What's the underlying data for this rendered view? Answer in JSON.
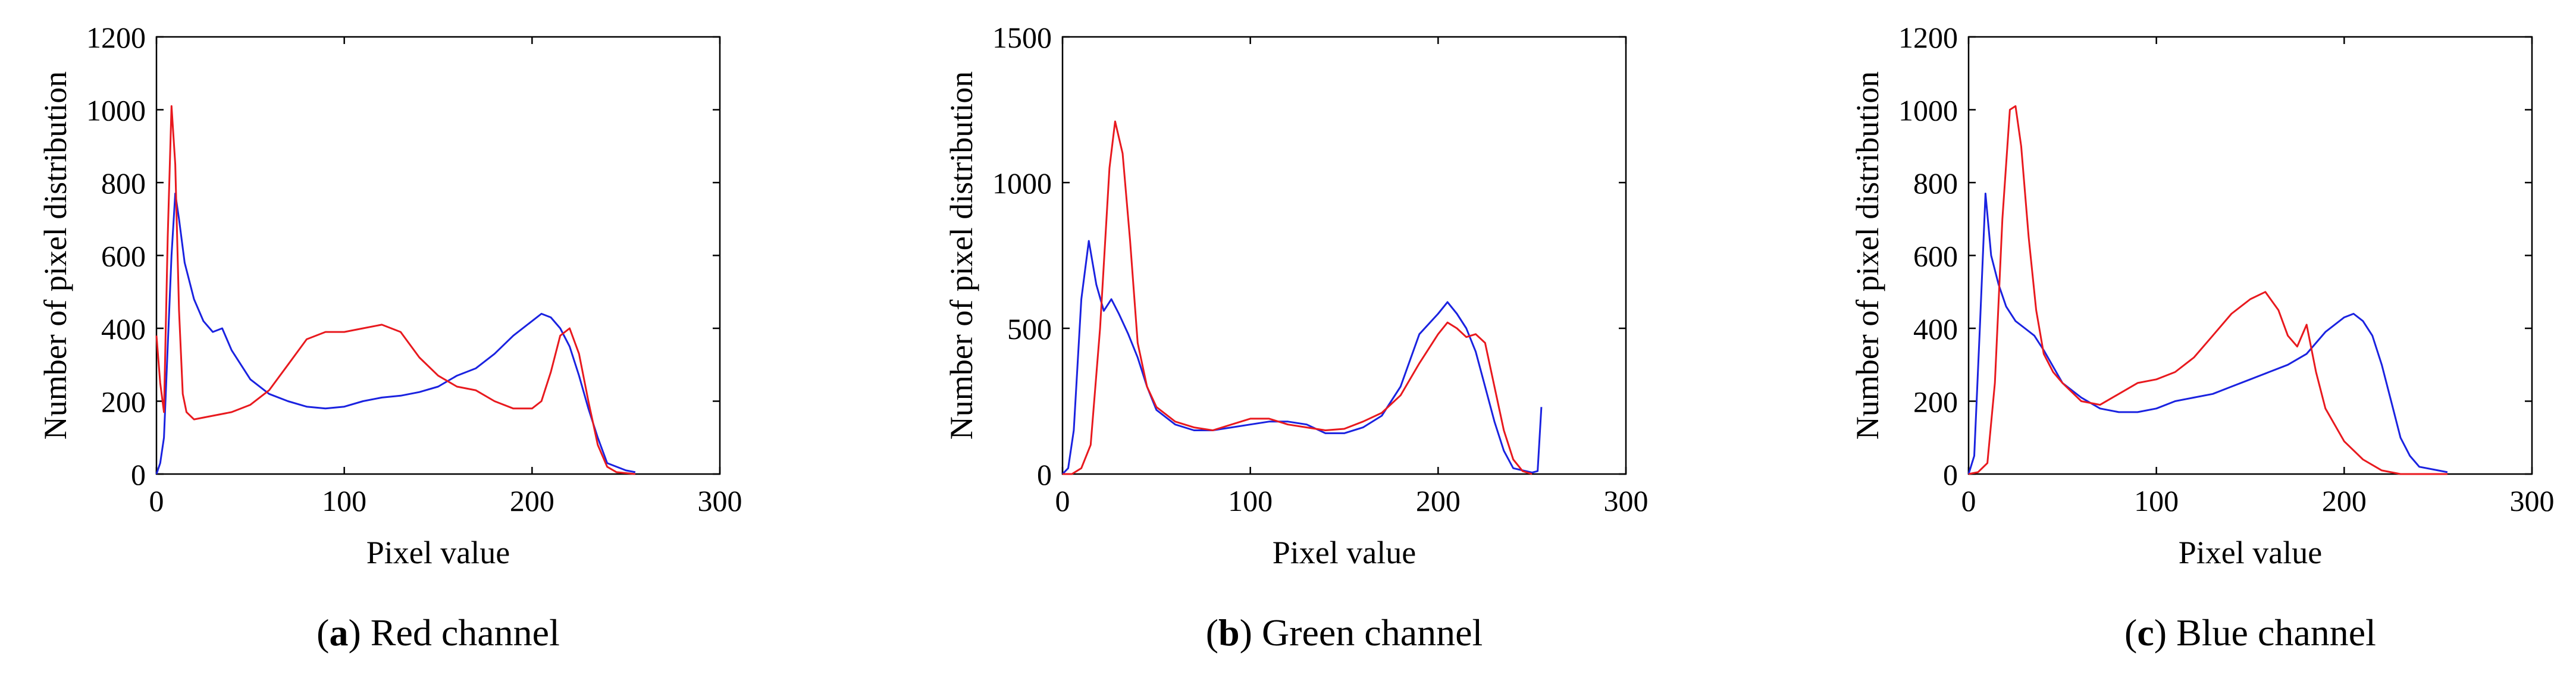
{
  "figure": {
    "colors": {
      "red_series": "#e8191e",
      "blue_series": "#1a22e0",
      "axis": "#000000"
    },
    "chart_data": [
      {
        "type": "line",
        "letter": "a",
        "caption": "Red channel",
        "xlabel": "Pixel value",
        "ylabel": "Number of pixel distribution",
        "xlim": [
          0,
          300
        ],
        "ylim": [
          0,
          1200
        ],
        "xticks": [
          0,
          100,
          200,
          300
        ],
        "yticks": [
          0,
          200,
          400,
          600,
          800,
          1000,
          1200
        ],
        "legend": "none",
        "series": [
          {
            "name": "red",
            "color": "#e8191e",
            "points": [
              [
                0,
                380
              ],
              [
                2,
                250
              ],
              [
                4,
                170
              ],
              [
                6,
                650
              ],
              [
                8,
                1010
              ],
              [
                10,
                850
              ],
              [
                12,
                450
              ],
              [
                14,
                220
              ],
              [
                16,
                170
              ],
              [
                20,
                150
              ],
              [
                30,
                160
              ],
              [
                40,
                170
              ],
              [
                50,
                190
              ],
              [
                60,
                230
              ],
              [
                70,
                300
              ],
              [
                80,
                370
              ],
              [
                90,
                390
              ],
              [
                100,
                390
              ],
              [
                110,
                400
              ],
              [
                120,
                410
              ],
              [
                130,
                390
              ],
              [
                140,
                320
              ],
              [
                150,
                270
              ],
              [
                160,
                240
              ],
              [
                170,
                230
              ],
              [
                180,
                200
              ],
              [
                190,
                180
              ],
              [
                200,
                180
              ],
              [
                205,
                200
              ],
              [
                210,
                280
              ],
              [
                215,
                380
              ],
              [
                220,
                400
              ],
              [
                225,
                330
              ],
              [
                230,
                200
              ],
              [
                235,
                80
              ],
              [
                240,
                20
              ],
              [
                245,
                5
              ],
              [
                255,
                0
              ]
            ]
          },
          {
            "name": "blue",
            "color": "#1a22e0",
            "points": [
              [
                0,
                0
              ],
              [
                2,
                30
              ],
              [
                4,
                100
              ],
              [
                6,
                350
              ],
              [
                8,
                600
              ],
              [
                10,
                770
              ],
              [
                12,
                700
              ],
              [
                15,
                580
              ],
              [
                20,
                480
              ],
              [
                25,
                420
              ],
              [
                30,
                390
              ],
              [
                35,
                400
              ],
              [
                40,
                340
              ],
              [
                50,
                260
              ],
              [
                60,
                220
              ],
              [
                70,
                200
              ],
              [
                80,
                185
              ],
              [
                90,
                180
              ],
              [
                100,
                185
              ],
              [
                110,
                200
              ],
              [
                120,
                210
              ],
              [
                130,
                215
              ],
              [
                140,
                225
              ],
              [
                150,
                240
              ],
              [
                160,
                270
              ],
              [
                170,
                290
              ],
              [
                180,
                330
              ],
              [
                190,
                380
              ],
              [
                200,
                420
              ],
              [
                205,
                440
              ],
              [
                210,
                430
              ],
              [
                215,
                400
              ],
              [
                220,
                350
              ],
              [
                225,
                270
              ],
              [
                230,
                180
              ],
              [
                235,
                100
              ],
              [
                240,
                30
              ],
              [
                250,
                10
              ],
              [
                255,
                5
              ]
            ]
          }
        ]
      },
      {
        "type": "line",
        "letter": "b",
        "caption": "Green channel",
        "xlabel": "Pixel value",
        "ylabel": "Number of pixel distribution",
        "xlim": [
          0,
          300
        ],
        "ylim": [
          0,
          1500
        ],
        "xticks": [
          0,
          100,
          200,
          300
        ],
        "yticks": [
          0,
          500,
          1000,
          1500
        ],
        "legend": "none",
        "series": [
          {
            "name": "red",
            "color": "#e8191e",
            "points": [
              [
                0,
                0
              ],
              [
                5,
                0
              ],
              [
                10,
                20
              ],
              [
                15,
                100
              ],
              [
                20,
                500
              ],
              [
                25,
                1050
              ],
              [
                28,
                1210
              ],
              [
                32,
                1100
              ],
              [
                36,
                800
              ],
              [
                40,
                450
              ],
              [
                45,
                300
              ],
              [
                50,
                230
              ],
              [
                60,
                180
              ],
              [
                70,
                160
              ],
              [
                80,
                150
              ],
              [
                90,
                170
              ],
              [
                100,
                190
              ],
              [
                110,
                190
              ],
              [
                120,
                170
              ],
              [
                130,
                160
              ],
              [
                140,
                150
              ],
              [
                150,
                155
              ],
              [
                160,
                180
              ],
              [
                170,
                210
              ],
              [
                180,
                270
              ],
              [
                190,
                380
              ],
              [
                200,
                480
              ],
              [
                205,
                520
              ],
              [
                210,
                500
              ],
              [
                215,
                470
              ],
              [
                220,
                480
              ],
              [
                225,
                450
              ],
              [
                230,
                300
              ],
              [
                235,
                150
              ],
              [
                240,
                50
              ],
              [
                245,
                10
              ],
              [
                250,
                0
              ]
            ]
          },
          {
            "name": "blue",
            "color": "#1a22e0",
            "points": [
              [
                0,
                0
              ],
              [
                3,
                20
              ],
              [
                6,
                150
              ],
              [
                10,
                600
              ],
              [
                14,
                800
              ],
              [
                18,
                650
              ],
              [
                22,
                560
              ],
              [
                26,
                600
              ],
              [
                30,
                550
              ],
              [
                35,
                480
              ],
              [
                40,
                400
              ],
              [
                45,
                300
              ],
              [
                50,
                220
              ],
              [
                60,
                170
              ],
              [
                70,
                150
              ],
              [
                80,
                150
              ],
              [
                90,
                160
              ],
              [
                100,
                170
              ],
              [
                110,
                180
              ],
              [
                120,
                180
              ],
              [
                130,
                170
              ],
              [
                140,
                140
              ],
              [
                150,
                140
              ],
              [
                160,
                160
              ],
              [
                170,
                200
              ],
              [
                180,
                300
              ],
              [
                190,
                480
              ],
              [
                200,
                550
              ],
              [
                205,
                590
              ],
              [
                210,
                550
              ],
              [
                215,
                500
              ],
              [
                220,
                420
              ],
              [
                225,
                300
              ],
              [
                230,
                180
              ],
              [
                235,
                80
              ],
              [
                240,
                20
              ],
              [
                250,
                5
              ],
              [
                253,
                10
              ],
              [
                255,
                230
              ]
            ]
          }
        ]
      },
      {
        "type": "line",
        "letter": "c",
        "caption": "Blue channel",
        "xlabel": "Pixel value",
        "ylabel": "Number of pixel distribution",
        "xlim": [
          0,
          300
        ],
        "ylim": [
          0,
          1200
        ],
        "xticks": [
          0,
          100,
          200,
          300
        ],
        "yticks": [
          0,
          200,
          400,
          600,
          800,
          1000,
          1200
        ],
        "legend": "none",
        "series": [
          {
            "name": "red",
            "color": "#e8191e",
            "points": [
              [
                0,
                0
              ],
              [
                5,
                5
              ],
              [
                10,
                30
              ],
              [
                14,
                250
              ],
              [
                18,
                700
              ],
              [
                22,
                1000
              ],
              [
                25,
                1010
              ],
              [
                28,
                900
              ],
              [
                32,
                650
              ],
              [
                36,
                450
              ],
              [
                40,
                330
              ],
              [
                45,
                280
              ],
              [
                50,
                250
              ],
              [
                60,
                200
              ],
              [
                70,
                190
              ],
              [
                80,
                220
              ],
              [
                90,
                250
              ],
              [
                100,
                260
              ],
              [
                110,
                280
              ],
              [
                120,
                320
              ],
              [
                130,
                380
              ],
              [
                140,
                440
              ],
              [
                150,
                480
              ],
              [
                158,
                500
              ],
              [
                165,
                450
              ],
              [
                170,
                380
              ],
              [
                175,
                350
              ],
              [
                180,
                410
              ],
              [
                185,
                280
              ],
              [
                190,
                180
              ],
              [
                200,
                90
              ],
              [
                210,
                40
              ],
              [
                220,
                10
              ],
              [
                230,
                0
              ],
              [
                255,
                0
              ]
            ]
          },
          {
            "name": "blue",
            "color": "#1a22e0",
            "points": [
              [
                0,
                0
              ],
              [
                3,
                50
              ],
              [
                6,
                400
              ],
              [
                9,
                770
              ],
              [
                12,
                600
              ],
              [
                16,
                520
              ],
              [
                20,
                460
              ],
              [
                25,
                420
              ],
              [
                30,
                400
              ],
              [
                35,
                380
              ],
              [
                40,
                340
              ],
              [
                50,
                250
              ],
              [
                60,
                210
              ],
              [
                70,
                180
              ],
              [
                80,
                170
              ],
              [
                90,
                170
              ],
              [
                100,
                180
              ],
              [
                110,
                200
              ],
              [
                120,
                210
              ],
              [
                130,
                220
              ],
              [
                140,
                240
              ],
              [
                150,
                260
              ],
              [
                160,
                280
              ],
              [
                170,
                300
              ],
              [
                180,
                330
              ],
              [
                190,
                390
              ],
              [
                200,
                430
              ],
              [
                205,
                440
              ],
              [
                210,
                420
              ],
              [
                215,
                380
              ],
              [
                220,
                300
              ],
              [
                225,
                200
              ],
              [
                230,
                100
              ],
              [
                235,
                50
              ],
              [
                240,
                20
              ],
              [
                250,
                10
              ],
              [
                255,
                5
              ]
            ]
          }
        ]
      }
    ]
  }
}
